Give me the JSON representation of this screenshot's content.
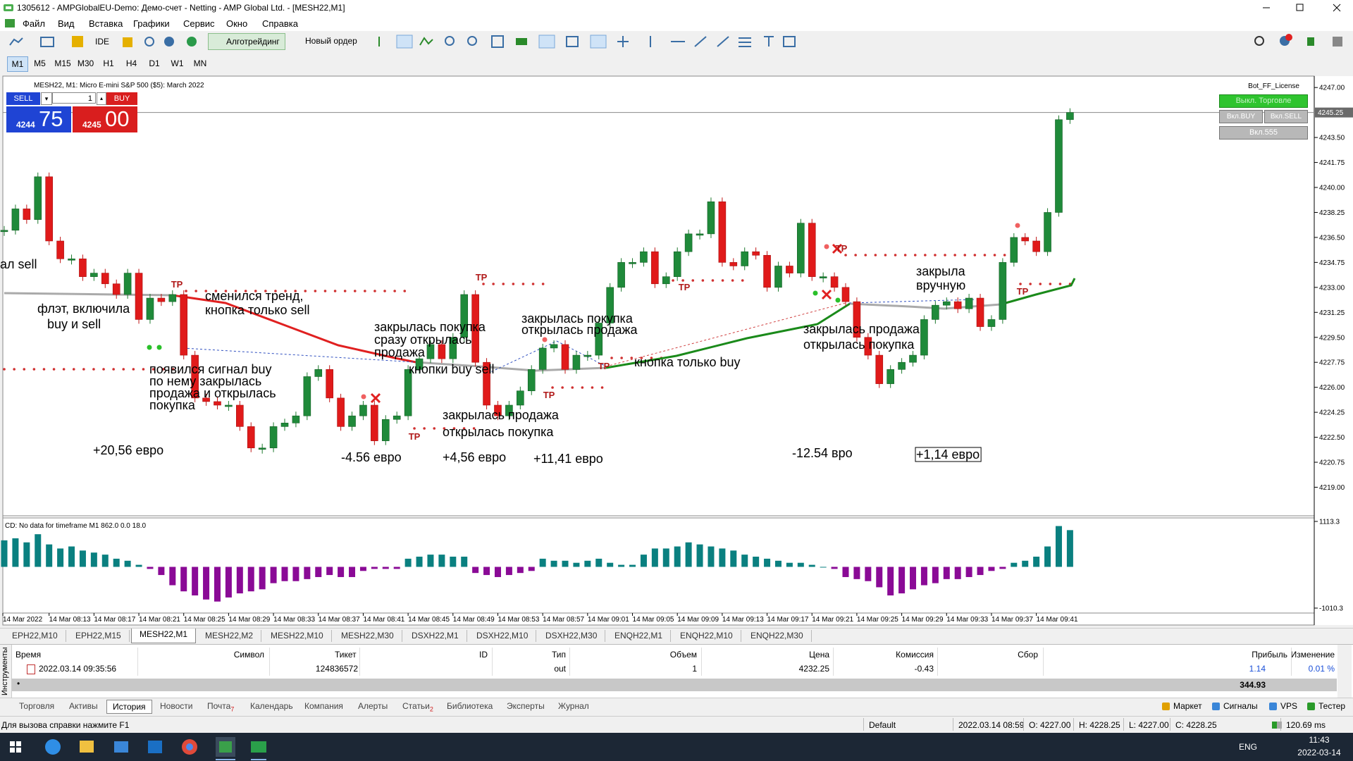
{
  "window": {
    "title": "1305612 - AMPGlobalEU-Demo: Демо-счет - Netting - AMP Global Ltd. - [MESH22,M1]"
  },
  "menu": [
    "Файл",
    "Вид",
    "Вставка",
    "Графики",
    "Сервис",
    "Окно",
    "Справка"
  ],
  "toolbar": {
    "ide": "IDE",
    "algo": "Алготрейдинг",
    "order": "Новый ордер"
  },
  "timeframes": [
    "M1",
    "M5",
    "M15",
    "M30",
    "H1",
    "H4",
    "D1",
    "W1",
    "MN"
  ],
  "active_timeframe": 0,
  "chart": {
    "header": "MESH22, M1:  Micro E-mini S&P 500 ($5): March 2022",
    "trade": {
      "sell": "SELL",
      "buy": "BUY",
      "volume": 1,
      "bid_big": "4244",
      "bid_small": "75",
      "ask_big": "4245",
      "ask_small": "00"
    },
    "panel": {
      "license": "Bot_FF_License",
      "off": "Выкл. Торговле",
      "buy": "Вкл.BUY",
      "sell": "Вкл.SELL",
      "num": "Вкл.555"
    },
    "ylim": [
      4217,
      4247.8
    ],
    "yticks": [
      {
        "value": 4247,
        "label": "4247.00"
      },
      {
        "value": 4243.5,
        "label": "4243.50"
      },
      {
        "value": 4241.75,
        "label": "4241.75"
      },
      {
        "value": 4240,
        "label": "4240.00"
      },
      {
        "value": 4238.25,
        "label": "4238.25"
      },
      {
        "value": 4236.5,
        "label": "4236.50"
      },
      {
        "value": 4234.75,
        "label": "4234.75"
      },
      {
        "value": 4233,
        "label": "4233.00"
      },
      {
        "value": 4231.25,
        "label": "4231.25"
      },
      {
        "value": 4229.5,
        "label": "4229.50"
      },
      {
        "value": 4227.75,
        "label": "4227.75"
      },
      {
        "value": 4226,
        "label": "4226.00"
      },
      {
        "value": 4224.25,
        "label": "4224.25"
      },
      {
        "value": 4222.5,
        "label": "4222.50"
      },
      {
        "value": 4220.75,
        "label": "4220.75"
      },
      {
        "value": 4219,
        "label": "4219.00"
      }
    ],
    "current_price": 4245.25,
    "closes": [
      4237,
      4238.5,
      4237.75,
      4240.75,
      4236.25,
      4235,
      4235,
      4233.75,
      4234,
      4233.25,
      4232.5,
      4234,
      4230.75,
      4232.25,
      4232,
      4232.5,
      4228.25,
      4225.25,
      4225,
      4224.75,
      4224.75,
      4223.25,
      4221.75,
      4221.75,
      4223.25,
      4223.5,
      4224,
      4226.75,
      4227.25,
      4225.25,
      4223.25,
      4224,
      4224.75,
      4222.25,
      4223.75,
      4224,
      4227.25,
      4228,
      4229,
      4228,
      4229.5,
      4232.5,
      4227.75,
      4224.75,
      4224,
      4224.75,
      4225.75,
      4227.25,
      4228.75,
      4229,
      4227.25,
      4228.25,
      4228.25,
      4230.5,
      4233,
      4234.75,
      4234.75,
      4235.5,
      4233.25,
      4233.75,
      4235.5,
      4236.75,
      4236.75,
      4239,
      4234.75,
      4234.5,
      4235.5,
      4235.25,
      4233,
      4234.5,
      4234,
      4237.5,
      4233.75,
      4233.75,
      4233,
      4232,
      4229.5,
      4228.25,
      4226.25,
      4227.25,
      4227.75,
      4228.25,
      4230.75,
      4231.75,
      4232,
      4231.5,
      4232.25,
      4230.25,
      4230.75,
      4234.75,
      4236.5,
      4236.25,
      4235.5,
      4238.25,
      4244.75,
      4245.25
    ],
    "time_labels": [
      "14 Mar 2022",
      "14 Mar 08:13",
      "14 Mar 08:17",
      "14 Mar 08:21",
      "14 Mar 08:25",
      "14 Mar 08:29",
      "14 Mar 08:33",
      "14 Mar 08:37",
      "14 Mar 08:41",
      "14 Mar 08:45",
      "14 Mar 08:49",
      "14 Mar 08:53",
      "14 Mar 08:57",
      "14 Mar 09:01",
      "14 Mar 09:05",
      "14 Mar 09:09",
      "14 Mar 09:13",
      "14 Mar 09:17",
      "14 Mar 09:21",
      "14 Mar 09:25",
      "14 Mar 09:29",
      "14 Mar 09:33",
      "14 Mar 09:37",
      "14 Mar 09:41"
    ],
    "annotations": [
      [
        "ал sell"
      ],
      [
        "флэт, включила",
        "buy и  sell"
      ],
      [
        "сменился тренд,",
        "кнопка только sell"
      ],
      [
        "появился сигнал buy",
        "по нему закрылась",
        "продажа и открылась",
        "покупка"
      ],
      [
        "закрылась покупка",
        "сразу открылась",
        "продажа"
      ],
      [
        "кнопки buy sell"
      ],
      [
        "закрылась продажа",
        "открылась покупка"
      ],
      [
        "закрылась покупка",
        "открылась продажа"
      ],
      [
        "кнопка только buy"
      ],
      [
        "закрылась продажа",
        "открылась покупка"
      ],
      [
        "закрыла",
        "вручную"
      ]
    ],
    "profits": [
      "+20,56 евро",
      "-4.56 евро",
      "+4,56 евро",
      "+11,41 евро",
      "-12.54 вро",
      "+1,14 евро"
    ],
    "tp_labels": [
      "TP",
      "TP",
      "TP",
      "TP",
      "TP",
      "TP",
      "TP",
      "TP"
    ]
  },
  "indicator": {
    "label": "CD: No data for timeframe M1 862.0 0.0 18.0",
    "ylim": [
      -1010.3,
      1113.3
    ],
    "yticks": [
      1113.3,
      -1010.3
    ],
    "values": [
      650,
      700,
      600,
      800,
      550,
      450,
      500,
      400,
      350,
      300,
      200,
      150,
      50,
      -50,
      -200,
      -450,
      -600,
      -700,
      -800,
      -850,
      -750,
      -650,
      -600,
      -550,
      -400,
      -350,
      -350,
      -300,
      -250,
      -200,
      -250,
      -250,
      -100,
      -50,
      -50,
      -50,
      200,
      250,
      300,
      300,
      250,
      250,
      -150,
      -200,
      -250,
      -200,
      -150,
      -100,
      200,
      150,
      150,
      100,
      150,
      200,
      100,
      50,
      50,
      300,
      450,
      450,
      500,
      600,
      550,
      500,
      450,
      400,
      300,
      250,
      200,
      150,
      100,
      100,
      50,
      0,
      -50,
      -250,
      -300,
      -350,
      -500,
      -700,
      -650,
      -550,
      -450,
      -400,
      -300,
      -300,
      -250,
      -200,
      -100,
      -50,
      100,
      150,
      250,
      500,
      1000,
      900
    ]
  },
  "symbol_tabs": [
    "EPH22,M10",
    "EPH22,M15",
    "MESH22,M1",
    "MESH22,M2",
    "MESH22,M10",
    "MESH22,M30",
    "DSXH22,M1",
    "DSXH22,M10",
    "DSXH22,M30",
    "ENQH22,M1",
    "ENQH22,M10",
    "ENQH22,M30"
  ],
  "active_symbol_tab": 2,
  "toolbox": {
    "side": "Инструменты",
    "columns": [
      "Время",
      "Символ",
      "Тикет",
      "ID",
      "Тип",
      "Объем",
      "Цена",
      "Комиссия",
      "Сбор",
      "Прибыль",
      "Изменение"
    ],
    "row": {
      "time": "2022.03.14 09:35:56",
      "ticket": "124836572",
      "type": "out",
      "volume": 1,
      "price": 4232.25,
      "commission": -0.43,
      "profit": 1.14,
      "change": "0.01 %"
    },
    "total": 344.93
  },
  "tabs": [
    {
      "name": "Торговля"
    },
    {
      "name": "Активы"
    },
    {
      "name": "История"
    },
    {
      "name": "Новости"
    },
    {
      "name": "Почта",
      "badge": 7
    },
    {
      "name": "Календарь"
    },
    {
      "name": "Компания"
    },
    {
      "name": "Алерты"
    },
    {
      "name": "Статьи",
      "badge": 2
    },
    {
      "name": "Библиотека"
    },
    {
      "name": "Эксперты"
    },
    {
      "name": "Журнал"
    }
  ],
  "active_tab": 2,
  "right_tabs": [
    "Маркет",
    "Сигналы",
    "VPS",
    "Тестер"
  ],
  "status": {
    "help": "Для вызова справки нажмите F1",
    "profile": "Default",
    "time": "2022.03.14 08:59",
    "o": "O: 4227.00",
    "h": "H: 4228.25",
    "l": "L: 4227.00",
    "c": "C: 4228.25",
    "net": "120.69 ms"
  },
  "taskbar": {
    "lang": "ENG",
    "time": "11:43",
    "date": "2022-03-14"
  }
}
